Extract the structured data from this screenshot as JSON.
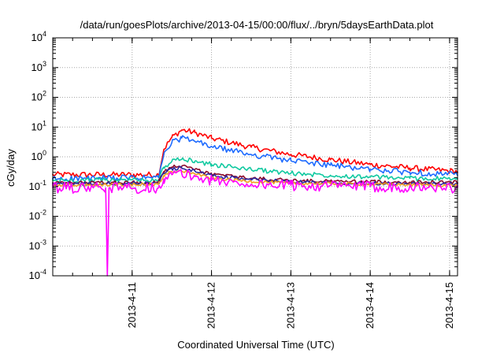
{
  "chart_data": {
    "type": "line",
    "title": "/data/run/goesPlots/archive/2013-04-15/00:00/flux/../bryn/5daysEarthData.plot",
    "xlabel": "Coordinated Universal Time (UTC)",
    "ylabel": "cGy/day",
    "y_scale": "log",
    "ylim": [
      0.0001,
      10000
    ],
    "y_ticks": [
      {
        "value": 0.0001,
        "base": "10",
        "exp": "-4"
      },
      {
        "value": 0.001,
        "base": "10",
        "exp": "-3"
      },
      {
        "value": 0.01,
        "base": "10",
        "exp": "-2"
      },
      {
        "value": 0.1,
        "base": "10",
        "exp": "-1"
      },
      {
        "value": 1,
        "base": "10",
        "exp": "0"
      },
      {
        "value": 10,
        "base": "10",
        "exp": "1"
      },
      {
        "value": 100,
        "base": "10",
        "exp": "2"
      },
      {
        "value": 1000,
        "base": "10",
        "exp": "3"
      },
      {
        "value": 10000,
        "base": "10",
        "exp": "4"
      }
    ],
    "xlim": [
      "2013-04-10 00:00",
      "2013-04-15 02:24"
    ],
    "x_ticks": [
      "2013-4-11",
      "2013-4-12",
      "2013-4-13",
      "2013-4-14",
      "2013-4-15"
    ],
    "grid": true,
    "legend": "none",
    "series": [
      {
        "color": "#ff0000",
        "noise": 0.1,
        "x": [
          "2013-04-10 00:00",
          "2013-04-11 08:00",
          "2013-04-11 09:36",
          "2013-04-11 12:00",
          "2013-04-11 15:00",
          "2013-04-11 19:00",
          "2013-04-12 00:00",
          "2013-04-12 12:00",
          "2013-04-13 00:00",
          "2013-04-13 12:00",
          "2013-04-14 00:00",
          "2013-04-14 12:00",
          "2013-04-15 02:24"
        ],
        "y": [
          0.25,
          0.25,
          1.8,
          4.5,
          8,
          6.5,
          4.2,
          2.1,
          1.2,
          0.8,
          0.55,
          0.42,
          0.32
        ]
      },
      {
        "color": "#1e6bff",
        "noise": 0.1,
        "x": [
          "2013-04-10 00:00",
          "2013-04-11 08:00",
          "2013-04-11 09:36",
          "2013-04-11 12:00",
          "2013-04-11 15:00",
          "2013-04-11 19:00",
          "2013-04-12 00:00",
          "2013-04-12 12:00",
          "2013-04-13 00:00",
          "2013-04-13 12:00",
          "2013-04-14 00:00",
          "2013-04-14 12:00",
          "2013-04-15 02:24"
        ],
        "y": [
          0.18,
          0.2,
          1.2,
          3,
          4.3,
          3.3,
          2.2,
          1.2,
          0.75,
          0.52,
          0.38,
          0.3,
          0.25
        ]
      },
      {
        "color": "#10c9a0",
        "noise": 0.08,
        "x": [
          "2013-04-10 00:00",
          "2013-04-11 08:00",
          "2013-04-11 09:36",
          "2013-04-11 12:00",
          "2013-04-11 15:00",
          "2013-04-11 19:00",
          "2013-04-12 00:00",
          "2013-04-12 12:00",
          "2013-04-13 00:00",
          "2013-04-13 12:00",
          "2013-04-14 00:00",
          "2013-04-14 12:00",
          "2013-04-15 02:24"
        ],
        "y": [
          0.16,
          0.17,
          0.45,
          0.7,
          0.82,
          0.72,
          0.55,
          0.38,
          0.28,
          0.24,
          0.21,
          0.19,
          0.18
        ]
      },
      {
        "color": "#8a0a2a",
        "noise": 0.06,
        "x": [
          "2013-04-10 00:00",
          "2013-04-11 08:00",
          "2013-04-11 09:36",
          "2013-04-11 12:00",
          "2013-04-11 15:00",
          "2013-04-11 19:00",
          "2013-04-12 00:00",
          "2013-04-12 12:00",
          "2013-04-13 00:00",
          "2013-04-13 12:00",
          "2013-04-14 00:00",
          "2013-04-14 12:00",
          "2013-04-15 02:24"
        ],
        "y": [
          0.13,
          0.14,
          0.32,
          0.45,
          0.48,
          0.38,
          0.26,
          0.19,
          0.16,
          0.15,
          0.145,
          0.14,
          0.14
        ]
      },
      {
        "color": "#2a2aa0",
        "noise": 0.06,
        "x": [
          "2013-04-10 00:00",
          "2013-04-11 08:00",
          "2013-04-11 09:36",
          "2013-04-11 12:00",
          "2013-04-11 15:00",
          "2013-04-11 19:00",
          "2013-04-12 00:00",
          "2013-04-12 12:00",
          "2013-04-13 00:00",
          "2013-04-13 12:00",
          "2013-04-14 00:00",
          "2013-04-14 12:00",
          "2013-04-15 02:24"
        ],
        "y": [
          0.12,
          0.13,
          0.28,
          0.4,
          0.42,
          0.33,
          0.23,
          0.17,
          0.145,
          0.135,
          0.13,
          0.125,
          0.12
        ]
      },
      {
        "color": "#f0a020",
        "noise": 0.05,
        "x": [
          "2013-04-10 00:00",
          "2013-04-11 08:00",
          "2013-04-11 09:36",
          "2013-04-11 12:00",
          "2013-04-11 15:00",
          "2013-04-11 19:00",
          "2013-04-12 00:00",
          "2013-04-12 12:00",
          "2013-04-13 00:00",
          "2013-04-13 12:00",
          "2013-04-14 00:00",
          "2013-04-14 12:00",
          "2013-04-15 02:24"
        ],
        "y": [
          0.11,
          0.12,
          0.24,
          0.32,
          0.33,
          0.27,
          0.19,
          0.15,
          0.13,
          0.125,
          0.12,
          0.115,
          0.11
        ]
      },
      {
        "color": "#ff00ff",
        "noise": 0.18,
        "x": [
          "2013-04-10 00:00",
          "2013-04-10 16:00",
          "2013-04-10 16:30",
          "2013-04-10 17:00",
          "2013-04-11 08:00",
          "2013-04-11 09:36",
          "2013-04-11 12:00",
          "2013-04-11 15:00",
          "2013-04-11 19:00",
          "2013-04-12 00:00",
          "2013-04-12 12:00",
          "2013-04-13 00:00",
          "2013-04-14 00:00",
          "2013-04-15 02:24"
        ],
        "y": [
          0.09,
          0.09,
          0.0001,
          0.09,
          0.09,
          0.18,
          0.25,
          0.27,
          0.22,
          0.16,
          0.12,
          0.11,
          0.1,
          0.09
        ]
      }
    ]
  }
}
